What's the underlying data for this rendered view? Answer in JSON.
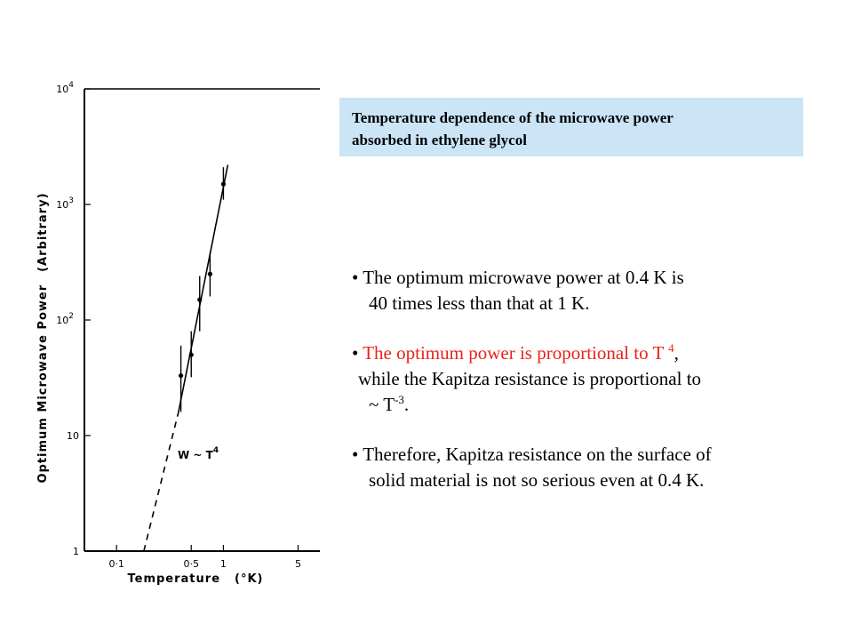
{
  "caption": {
    "line1": "Temperature dependence of the microwave power",
    "line2": "absorbed in ethylene glycol"
  },
  "bullets": {
    "b1": {
      "mark": "•",
      "l1": "The optimum microwave power at 0.4 K is",
      "l2": "40 times less than that at 1 K."
    },
    "b2": {
      "mark": "•",
      "l1a": "The optimum power is proportional to T ",
      "l1sup": "4",
      "l1b": ",",
      "l2": "while the Kapitza resistance is proportional to",
      "l3a": "~ T",
      "l3sup": "-3",
      "l3b": "."
    },
    "b3": {
      "mark": "•",
      "l1": "Therefore, Kapitza resistance on the surface of",
      "l2": "solid material is not so serious even at 0.4 K."
    }
  },
  "chart_data": {
    "type": "scatter",
    "x_scale": "log",
    "y_scale": "log",
    "xlim": [
      0.05,
      8
    ],
    "ylim": [
      1,
      10000
    ],
    "xlabel": "Temperature",
    "xunit": "(°K)",
    "ylabel": "Optimum Microwave Power",
    "yunit": "(Arbitrary)",
    "x_ticks": [
      {
        "value": 0.1,
        "label": "0·1"
      },
      {
        "value": 0.5,
        "label": "0·5"
      },
      {
        "value": 1,
        "label": "1"
      },
      {
        "value": 5,
        "label": "5"
      }
    ],
    "y_ticks": [
      {
        "value": 1,
        "label": "1"
      },
      {
        "value": 10,
        "label": "10"
      },
      {
        "value": 100,
        "label": "10",
        "exp": "2"
      },
      {
        "value": 1000,
        "label": "10",
        "exp": "3"
      },
      {
        "value": 10000,
        "label": "10",
        "exp": "4"
      }
    ],
    "points": [
      {
        "x": 0.4,
        "y": 33,
        "ylo": 16,
        "yhi": 60
      },
      {
        "x": 0.5,
        "y": 50,
        "ylo": 32,
        "yhi": 80
      },
      {
        "x": 0.6,
        "y": 150,
        "ylo": 80,
        "yhi": 240
      },
      {
        "x": 0.75,
        "y": 250,
        "ylo": 160,
        "yhi": 380
      },
      {
        "x": 1.0,
        "y": 1500,
        "ylo": 1100,
        "yhi": 2100
      }
    ],
    "fit_solid": [
      [
        0.38,
        16
      ],
      [
        1.1,
        2200
      ]
    ],
    "fit_dashed": [
      [
        0.18,
        1
      ],
      [
        0.38,
        16
      ]
    ],
    "annotation": {
      "text": "W ~ T",
      "sup": "4"
    }
  }
}
